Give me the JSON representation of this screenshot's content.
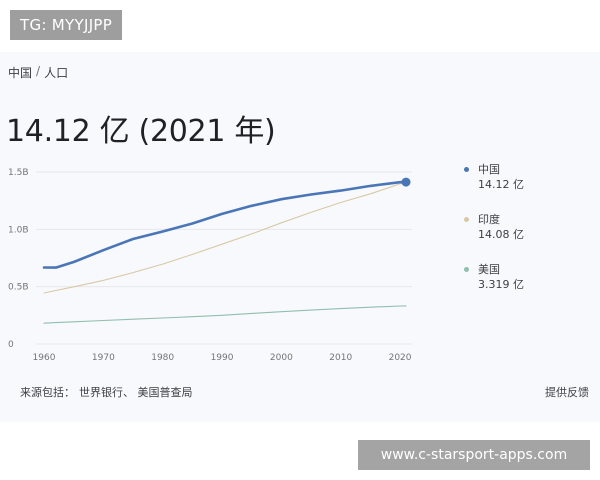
{
  "watermarks": {
    "top": "TG: MYYJJPP",
    "bottom": "www.c-starsport-apps.com"
  },
  "breadcrumb": {
    "country": "中国",
    "separator": "/",
    "topic": "人口"
  },
  "headline": "14.12 亿 (2021 年)",
  "source": {
    "label": "来源包括：",
    "items": "世界银行、 美国普查局"
  },
  "feedback": "提供反馈",
  "colors": {
    "china": "#4a76b8",
    "india": "#d8c9a6",
    "usa": "#8fbfae",
    "grid": "#e6e8ec",
    "axis_text": "#70757a"
  },
  "chart_data": {
    "type": "line",
    "title": "",
    "xlabel": "",
    "ylabel": "",
    "x": [
      1960,
      1962,
      1965,
      1970,
      1975,
      1980,
      1985,
      1990,
      1995,
      2000,
      2005,
      2010,
      2015,
      2020,
      2021
    ],
    "xlim": [
      1960,
      2021
    ],
    "ylim": [
      0,
      1.5
    ],
    "x_ticks": [
      "1960",
      "1970",
      "1980",
      "1990",
      "2000",
      "2010",
      "2020"
    ],
    "y_ticks": [
      "0",
      "0.5B",
      "1.0B",
      "1.5B"
    ],
    "y_tick_values": [
      0,
      0.5,
      1.0,
      1.5
    ],
    "grid": true,
    "legend": "right",
    "series": [
      {
        "name": "中国",
        "legend_value": "14.12 亿",
        "values": [
          0.667,
          0.666,
          0.715,
          0.818,
          0.916,
          0.981,
          1.051,
          1.135,
          1.205,
          1.263,
          1.304,
          1.338,
          1.379,
          1.411,
          1.412
        ]
      },
      {
        "name": "印度",
        "legend_value": "14.08 亿",
        "values": [
          0.445,
          0.467,
          0.499,
          0.555,
          0.623,
          0.697,
          0.781,
          0.87,
          0.96,
          1.057,
          1.148,
          1.234,
          1.31,
          1.396,
          1.408
        ]
      },
      {
        "name": "美国",
        "legend_value": "3.319 亿",
        "values": [
          0.181,
          0.187,
          0.194,
          0.205,
          0.216,
          0.227,
          0.238,
          0.25,
          0.267,
          0.282,
          0.296,
          0.309,
          0.321,
          0.331,
          0.332
        ]
      }
    ]
  }
}
